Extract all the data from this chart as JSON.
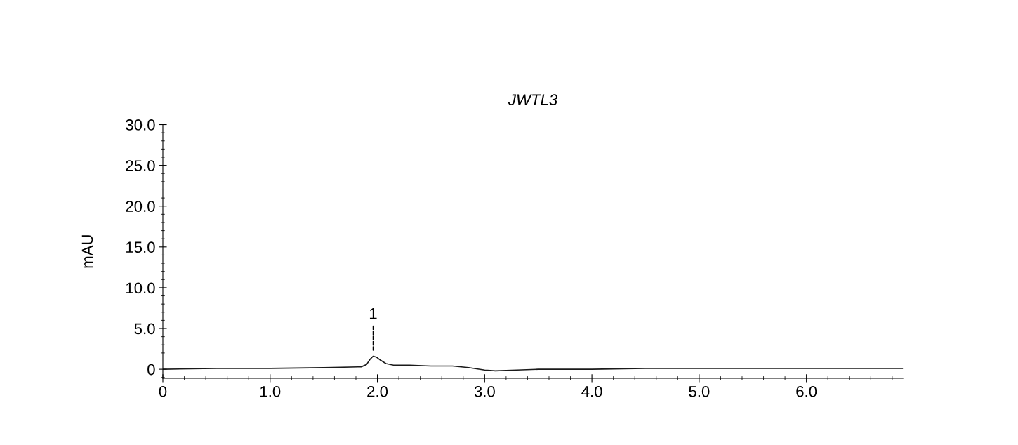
{
  "chart_data": {
    "type": "line",
    "title": "JWTL3",
    "ylabel": "mAU",
    "x": [
      0,
      0.5,
      1.0,
      1.5,
      1.85,
      1.9,
      1.93,
      1.96,
      1.99,
      2.03,
      2.08,
      2.15,
      2.3,
      2.5,
      2.7,
      2.85,
      3.0,
      3.1,
      3.3,
      3.5,
      4.0,
      4.5,
      5.0,
      5.5,
      6.0,
      6.5,
      6.9
    ],
    "series": [
      {
        "color": "#1a1a1a",
        "values": [
          0,
          0.1,
          0.1,
          0.2,
          0.3,
          0.6,
          1.2,
          1.6,
          1.5,
          1.1,
          0.7,
          0.5,
          0.5,
          0.4,
          0.4,
          0.2,
          -0.1,
          -0.2,
          -0.1,
          0.0,
          0.0,
          0.1,
          0.1,
          0.1,
          0.1,
          0.1,
          0.1
        ]
      }
    ],
    "annotations": [
      {
        "text": "1",
        "x": 1.96,
        "y": 1.6
      }
    ],
    "xlim": [
      0,
      6.9
    ],
    "ylim": [
      -1.1,
      30
    ],
    "xticks": [
      0,
      {
        "value": 1,
        "label": "1.0"
      },
      {
        "value": 2,
        "label": "2.0"
      },
      {
        "value": 3,
        "label": "3.0"
      },
      {
        "value": 4,
        "label": "4.0"
      },
      {
        "value": 5,
        "label": "5.0"
      },
      {
        "value": 6,
        "label": "6.0"
      }
    ],
    "yticks": [
      0,
      {
        "value": 5,
        "label": "5.0"
      },
      {
        "value": 10,
        "label": "10.0"
      },
      {
        "value": 15,
        "label": "15.0"
      },
      {
        "value": 20,
        "label": "20.0"
      },
      {
        "value": 25,
        "label": "25.0"
      },
      {
        "value": 30,
        "label": "30.0"
      }
    ],
    "grid": false,
    "marker": "none",
    "line_style": "solid"
  }
}
